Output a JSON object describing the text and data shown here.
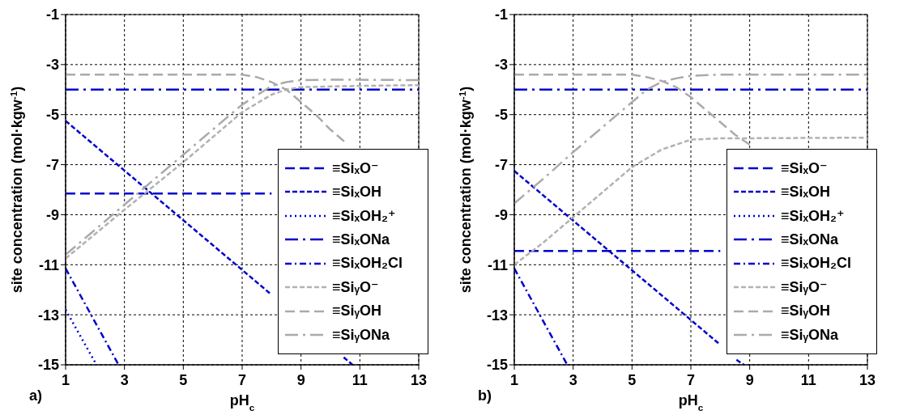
{
  "chart_data": [
    {
      "type": "line",
      "xlabel": "pH$_{c}$",
      "ylabel": "site concentration (mol·kgw$^{-1}$)",
      "annotations": [
        "a)"
      ],
      "xlim": [
        1,
        13
      ],
      "xticks": [
        1,
        3,
        5,
        7,
        9,
        11,
        13
      ],
      "ylim": [
        -15,
        -1
      ],
      "yticks": [
        -15,
        -13,
        -11,
        -9,
        -7,
        -5,
        -3,
        -1
      ],
      "grid": true,
      "legend": "bottom right",
      "series": [
        {
          "name": "≡SiₓO⁻",
          "color": "#0000cc",
          "line_style": "longdash",
          "x": [
            1,
            8
          ],
          "values": [
            -8.15,
            -8.15
          ]
        },
        {
          "name": "≡SiₓOH",
          "color": "#0000cc",
          "line_style": "dashed",
          "x": [
            1,
            8,
            9,
            10.45,
            10.75
          ],
          "values": [
            -5.25,
            -12.2,
            null,
            -14.7,
            -15
          ]
        },
        {
          "name": "≡SiₓOH₂⁺",
          "color": "#0000cc",
          "line_style": "dotted",
          "x": [
            1,
            2.05
          ],
          "values": [
            -12.8,
            -15
          ]
        },
        {
          "name": "≡SiₓONa",
          "color": "#0000cc",
          "line_style": "longdashdot",
          "x": [
            1,
            13
          ],
          "values": [
            -4,
            -4
          ]
        },
        {
          "name": "≡SiₓOH₂Cl",
          "color": "#0000cc",
          "line_style": "dashdot",
          "x": [
            1,
            2.8
          ],
          "values": [
            -11.15,
            -15
          ]
        },
        {
          "name": "≡SiᵧO⁻",
          "color": "#b2b2b2",
          "line_style": "dashed",
          "x": [
            1,
            3,
            5,
            7,
            8,
            8.5,
            9,
            11,
            13
          ],
          "values": [
            -10.75,
            -8.8,
            -6.9,
            -4.9,
            -4.2,
            -4.0,
            -3.9,
            -3.85,
            -3.82
          ]
        },
        {
          "name": "≡SiᵧOH",
          "color": "#aaaaaa",
          "line_style": "longdash",
          "x": [
            1,
            7,
            7.5,
            8,
            8.5,
            9,
            9.5,
            10,
            10.5
          ],
          "values": [
            -3.4,
            -3.4,
            -3.5,
            -3.7,
            -4.0,
            -4.5,
            -5.0,
            -5.6,
            -6.1
          ]
        },
        {
          "name": "≡SiᵧONa",
          "color": "#aaaaaa",
          "line_style": "longdashdot",
          "x": [
            1,
            2,
            3,
            4,
            5,
            6,
            7,
            8,
            8.5,
            9,
            10,
            13
          ],
          "values": [
            -10.6,
            -9.6,
            -8.6,
            -7.6,
            -6.6,
            -5.6,
            -4.6,
            -3.85,
            -3.7,
            -3.62,
            -3.6,
            -3.62
          ]
        }
      ]
    },
    {
      "type": "line",
      "xlabel": "pH$_{c}$",
      "ylabel": "site concentration (mol·kgw$^{-1}$)",
      "annotations": [
        "b)"
      ],
      "xlim": [
        1,
        13
      ],
      "xticks": [
        1,
        3,
        5,
        7,
        9,
        11,
        13
      ],
      "ylim": [
        -15,
        -1
      ],
      "yticks": [
        -15,
        -13,
        -11,
        -9,
        -7,
        -5,
        -3,
        -1
      ],
      "grid": true,
      "legend": "bottom right",
      "series": [
        {
          "name": "≡SiₓO⁻",
          "color": "#0000cc",
          "line_style": "longdash",
          "x": [
            1,
            8
          ],
          "values": [
            -10.45,
            -10.45
          ]
        },
        {
          "name": "≡SiₓOH",
          "color": "#0000cc",
          "line_style": "dashed",
          "x": [
            1,
            8,
            8.3,
            8.55,
            8.8
          ],
          "values": [
            -7.25,
            -14.2,
            null,
            -14.8,
            -15
          ]
        },
        {
          "name": "≡SiₓOH₂⁺",
          "color": "#0000cc",
          "line_style": "dotted"
        },
        {
          "name": "≡SiₓONa",
          "color": "#0000cc",
          "line_style": "longdashdot",
          "x": [
            1,
            13
          ],
          "values": [
            -4,
            -4
          ]
        },
        {
          "name": "≡SiₓOH₂Cl",
          "color": "#0000cc",
          "line_style": "dashdot",
          "x": [
            1,
            2.8
          ],
          "values": [
            -11.15,
            -15
          ]
        },
        {
          "name": "≡SiᵧO⁻",
          "color": "#b2b2b2",
          "line_style": "dashed",
          "x": [
            1,
            2,
            3,
            4,
            5,
            6,
            7,
            8,
            13
          ],
          "values": [
            -11.0,
            -10.1,
            -9.1,
            -8.1,
            -7.1,
            -6.4,
            -6.0,
            -5.95,
            -5.92
          ]
        },
        {
          "name": "≡SiᵧOH",
          "color": "#aaaaaa",
          "line_style": "longdash",
          "x": [
            1,
            5,
            5.5,
            6,
            6.5,
            7,
            7.5,
            8,
            8.5,
            9
          ],
          "values": [
            -3.4,
            -3.4,
            -3.5,
            -3.65,
            -3.9,
            -4.3,
            -4.8,
            -5.3,
            -5.8,
            -6.2
          ]
        },
        {
          "name": "≡SiᵧONa",
          "color": "#aaaaaa",
          "line_style": "longdashdot",
          "x": [
            1,
            2,
            3,
            4,
            5,
            5.5,
            6,
            6.5,
            7,
            8,
            13
          ],
          "values": [
            -8.55,
            -7.55,
            -6.5,
            -5.5,
            -4.5,
            -4.0,
            -3.7,
            -3.55,
            -3.45,
            -3.4,
            -3.4
          ]
        }
      ]
    }
  ]
}
